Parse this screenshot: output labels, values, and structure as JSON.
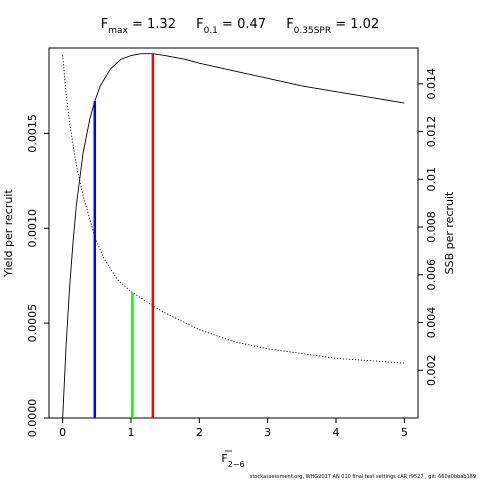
{
  "chart_data": {
    "type": "line",
    "title": {
      "fmax": {
        "label": "F",
        "sub": "max",
        "value": "1.32"
      },
      "f01": {
        "label": "F",
        "sub": "0.1",
        "value": "0.47"
      },
      "f035": {
        "label": "F",
        "sub": "0.35SPR",
        "value": "1.02"
      }
    },
    "xlabel": {
      "label": "F",
      "sub": "2−6"
    },
    "ylabel_left": "Yield per recruit",
    "ylabel_right": "SSB per recruit",
    "xlim": [
      -0.2,
      5.2
    ],
    "ylim_left": [
      0,
      0.00195
    ],
    "ylim_right": [
      0,
      0.0155
    ],
    "x_ticks": [
      "0",
      "1",
      "2",
      "3",
      "4",
      "5"
    ],
    "y_left_ticks": [
      "0.0000",
      "0.0005",
      "0.0010",
      "0.0015"
    ],
    "y_right_ticks": [
      "0.002",
      "0.004",
      "0.006",
      "0.008",
      "0.01",
      "0.012",
      "0.014"
    ],
    "series": [
      {
        "axis": "left",
        "style": "solid",
        "color": "#000000",
        "x": [
          0,
          0.05,
          0.1,
          0.15,
          0.2,
          0.3,
          0.4,
          0.47,
          0.55,
          0.7,
          0.85,
          1.0,
          1.15,
          1.32,
          1.5,
          1.8,
          2.0,
          2.5,
          3.0,
          3.5,
          4.0,
          4.5,
          5.0
        ],
        "y": [
          0.0,
          0.00038,
          0.00068,
          0.00092,
          0.00112,
          0.0014,
          0.00158,
          0.00167,
          0.00175,
          0.00184,
          0.00189,
          0.00191,
          0.00192,
          0.00192,
          0.00191,
          0.00189,
          0.00187,
          0.00183,
          0.00179,
          0.00175,
          0.00172,
          0.00169,
          0.00166
        ]
      },
      {
        "axis": "right",
        "style": "dotted",
        "color": "#000000",
        "x": [
          0,
          0.05,
          0.1,
          0.2,
          0.3,
          0.47,
          0.6,
          0.8,
          1.0,
          1.32,
          1.5,
          2.0,
          2.5,
          3.0,
          3.5,
          4.0,
          4.5,
          5.0
        ],
        "y": [
          0.0152,
          0.0136,
          0.0124,
          0.0106,
          0.0093,
          0.0076,
          0.0067,
          0.0058,
          0.0053,
          0.0047,
          0.0044,
          0.0037,
          0.0032,
          0.0029,
          0.0027,
          0.0025,
          0.0024,
          0.0023
        ]
      }
    ],
    "reference_lines": [
      {
        "x": 0.47,
        "y": 0.00167,
        "color": "#0000ff",
        "axis": "left"
      },
      {
        "x": 1.02,
        "y": 0.00066,
        "color": "#00ff00",
        "axis": "left"
      },
      {
        "x": 1.32,
        "y": 0.00192,
        "color": "#ff0000",
        "axis": "left"
      }
    ],
    "footnote": "stockassessment.org,  WHG2017  AN  010  final  test  settings  cAR  r9527 ,  git:  660a0bbab189"
  }
}
